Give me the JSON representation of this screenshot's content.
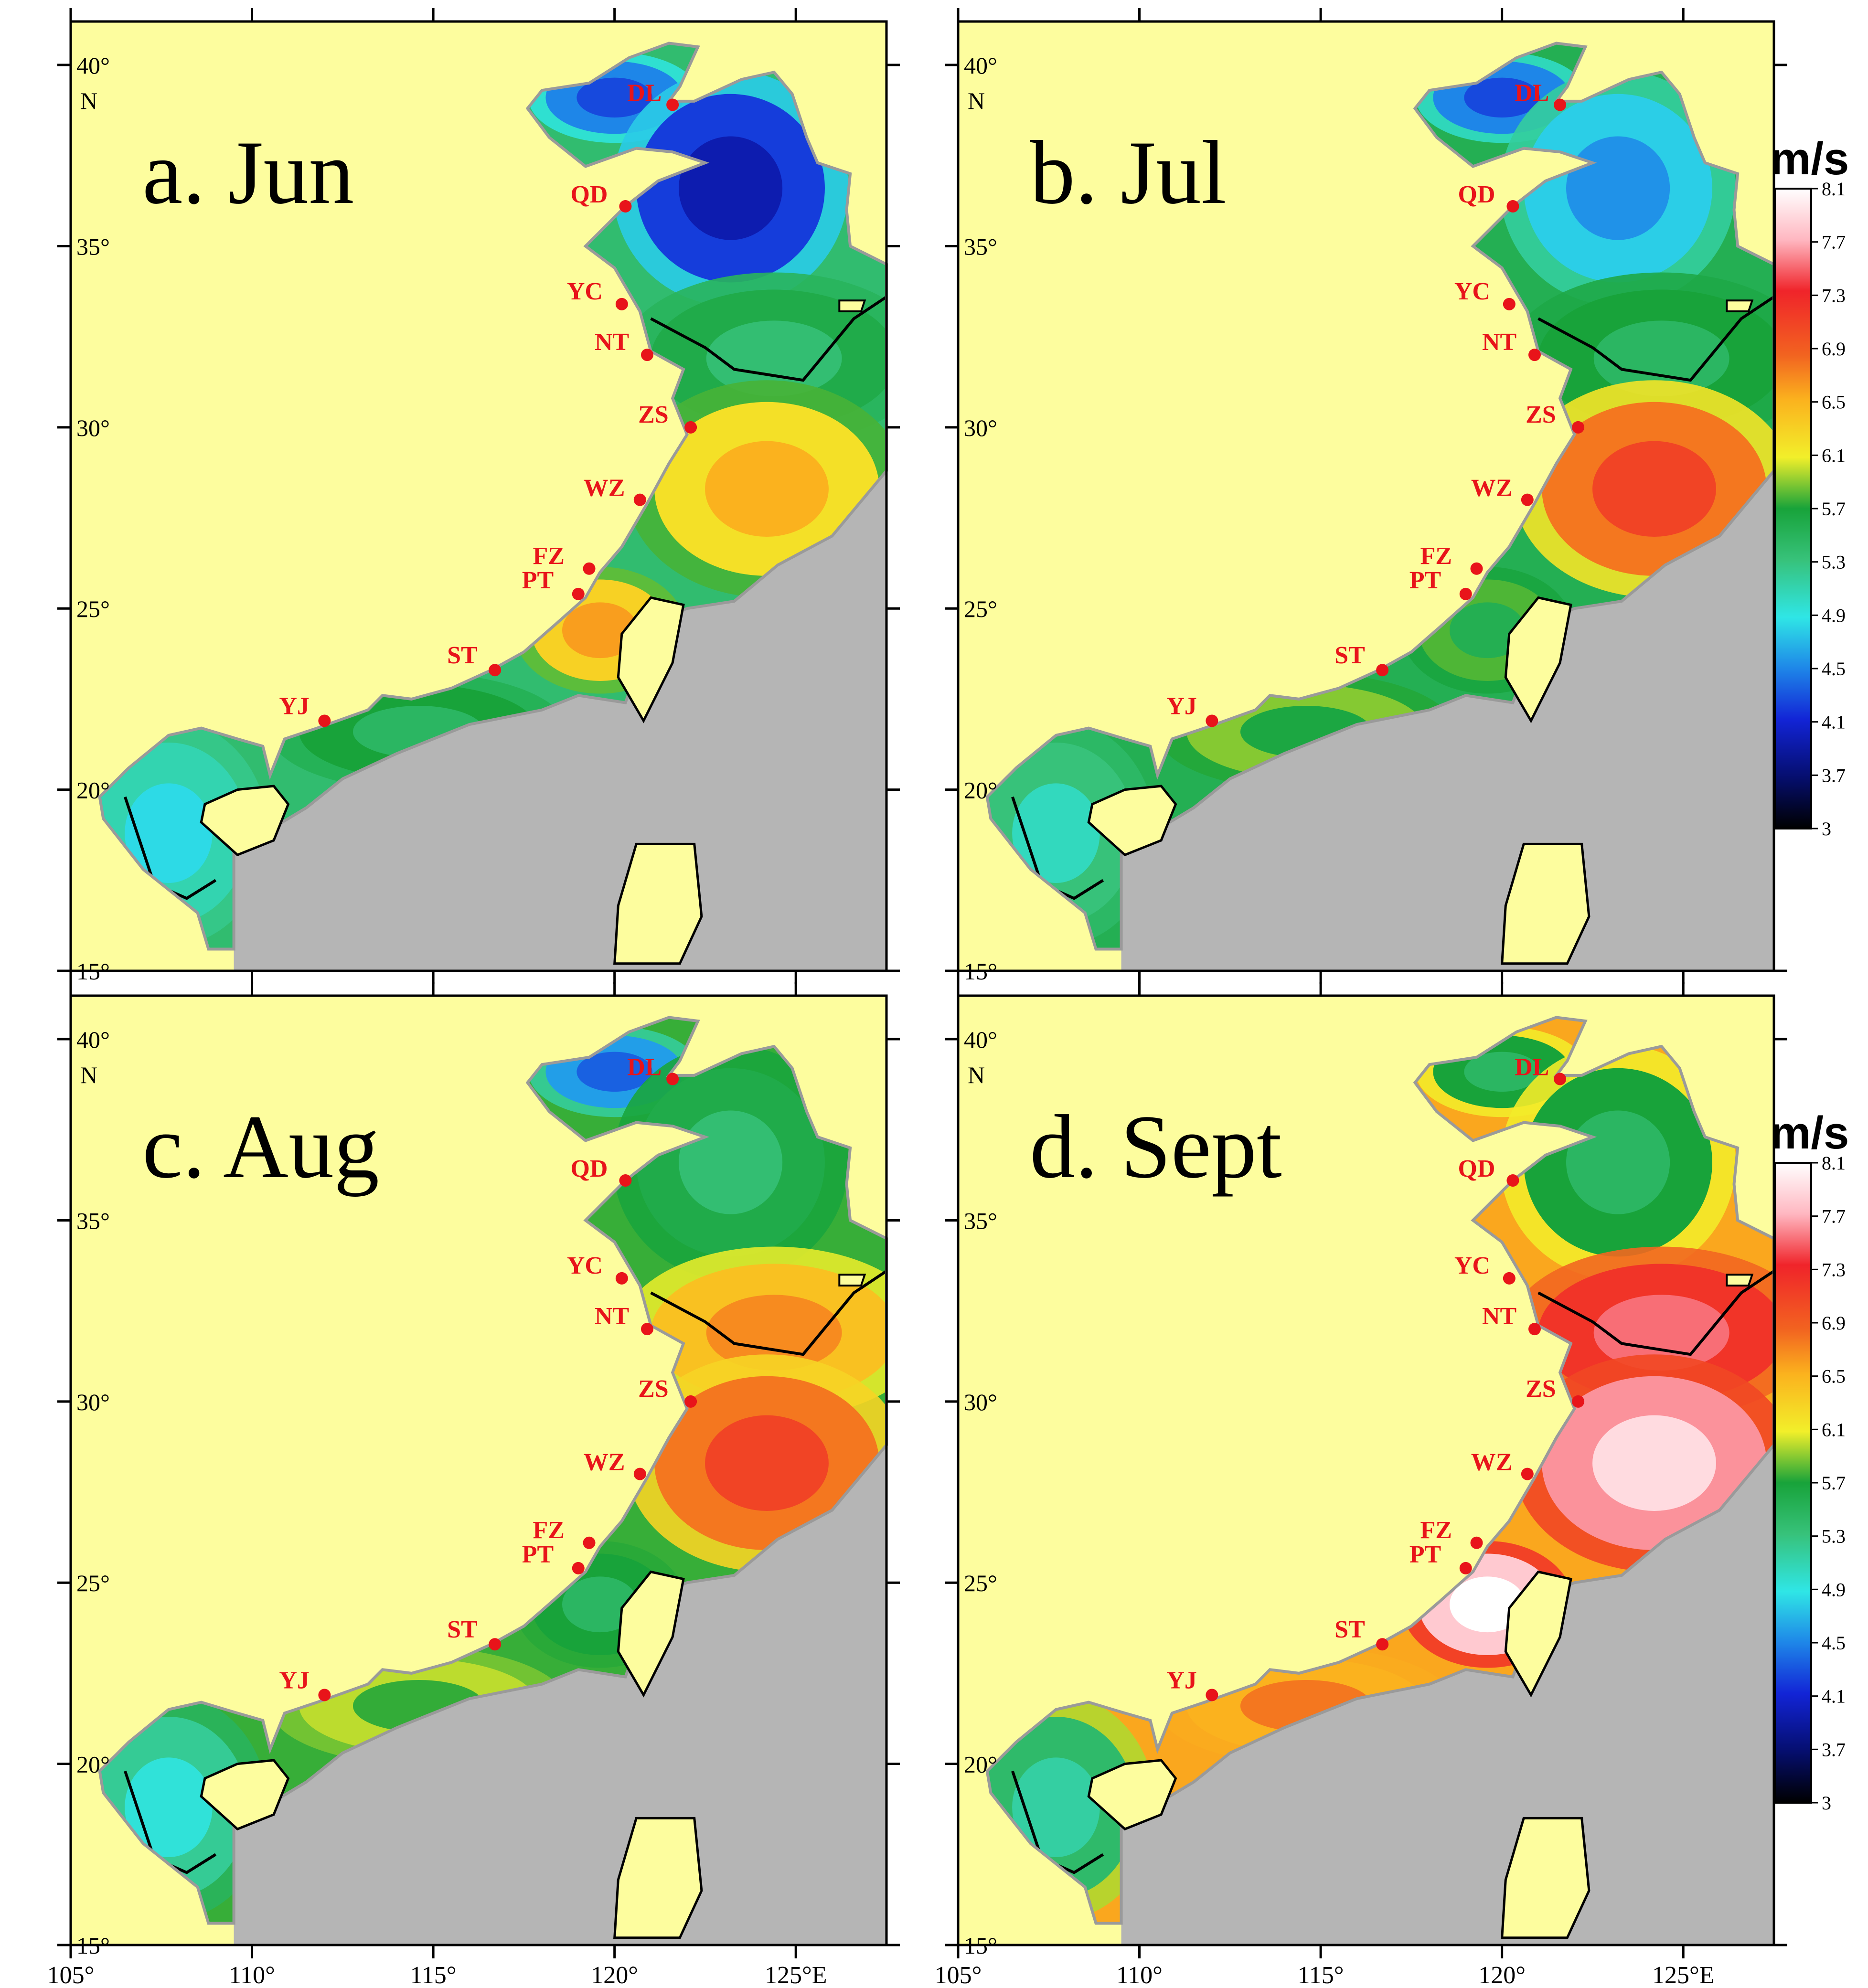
{
  "figure": {
    "panels": [
      {
        "id": "jun",
        "title": "a. Jun"
      },
      {
        "id": "jul",
        "title": "b. Jul"
      },
      {
        "id": "aug",
        "title": "c. Aug"
      },
      {
        "id": "sept",
        "title": "d. Sept"
      }
    ],
    "lon_ticks": [
      "105°",
      "110°",
      "115°",
      "120°",
      "125°E"
    ],
    "lat_ticks": [
      "40°",
      "35°",
      "30°",
      "25°",
      "20°",
      "15°"
    ],
    "lat_unit": "N",
    "stations": [
      "DL",
      "QD",
      "YC",
      "NT",
      "ZS",
      "WZ",
      "FZ",
      "PT",
      "ST",
      "YJ"
    ],
    "colorbar": {
      "title": "m/s",
      "ticks": [
        "8.1",
        "7.7",
        "7.3",
        "6.9",
        "6.5",
        "6.1",
        "5.7",
        "5.3",
        "4.9",
        "4.5",
        "4.1",
        "3.7",
        "3"
      ]
    },
    "colors": {
      "land": "#fdfd9e",
      "grey_land": "#b5b5b5",
      "station": "#e8141a",
      "frame": "#000000"
    },
    "speed_fields": {
      "jun": {
        "bohai": 4.5,
        "yellow_sea": 4.2,
        "east_china_sea_north": 5.6,
        "east_china_sea_south": 6.2,
        "taiwan_strait": 6.3,
        "south_china_sea": 5.7,
        "beibu_gulf": 5.1
      },
      "jul": {
        "bohai": 4.5,
        "yellow_sea": 4.8,
        "east_china_sea_north": 5.7,
        "east_china_sea_south": 6.8,
        "taiwan_strait": 5.8,
        "south_china_sea": 5.9,
        "beibu_gulf": 5.3
      },
      "aug": {
        "bohai": 4.6,
        "yellow_sea": 5.6,
        "east_china_sea_north": 6.4,
        "east_china_sea_south": 6.8,
        "taiwan_strait": 5.7,
        "south_china_sea": 6.0,
        "beibu_gulf": 5.2
      },
      "sept": {
        "bohai": 5.7,
        "yellow_sea": 5.7,
        "east_china_sea_north": 7.2,
        "east_china_sea_south": 7.6,
        "taiwan_strait": 7.8,
        "south_china_sea": 6.5,
        "beibu_gulf": 5.4
      }
    }
  }
}
